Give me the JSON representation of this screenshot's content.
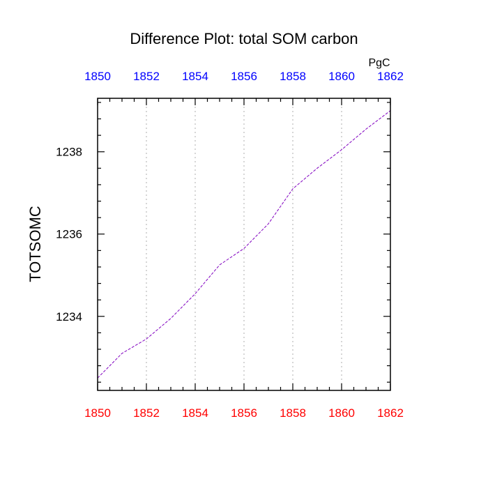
{
  "chart_data": {
    "type": "line",
    "title": "Difference Plot: total SOM carbon",
    "units": "PgC",
    "xlabel": "",
    "ylabel": "TOTSOMC",
    "xlim": [
      1850,
      1862
    ],
    "ylim": [
      1232.2,
      1239.3
    ],
    "x_ticks": [
      1850,
      1852,
      1854,
      1856,
      1858,
      1860,
      1862
    ],
    "y_ticks": [
      1234,
      1236,
      1238
    ],
    "y_minor_step": 0.4,
    "x_minor_step": 0.5,
    "grid": {
      "vertical_dotted": true,
      "horizontal": false
    },
    "colors": {
      "bottom_tick_labels": "#ff0000",
      "top_tick_labels": "#0000ff",
      "left_tick_labels": "#000000",
      "line": "#8000c0",
      "grid": "#bbbbbb",
      "frame": "#000000"
    },
    "series": [
      {
        "style": "dashed",
        "x": [
          1850,
          1851,
          1852,
          1853,
          1854,
          1855,
          1856,
          1857,
          1858,
          1859,
          1860,
          1861,
          1862
        ],
        "values": [
          1232.5,
          1233.1,
          1233.45,
          1233.95,
          1234.55,
          1235.25,
          1235.65,
          1236.25,
          1237.1,
          1237.6,
          1238.05,
          1238.55,
          1239.0
        ]
      }
    ]
  }
}
